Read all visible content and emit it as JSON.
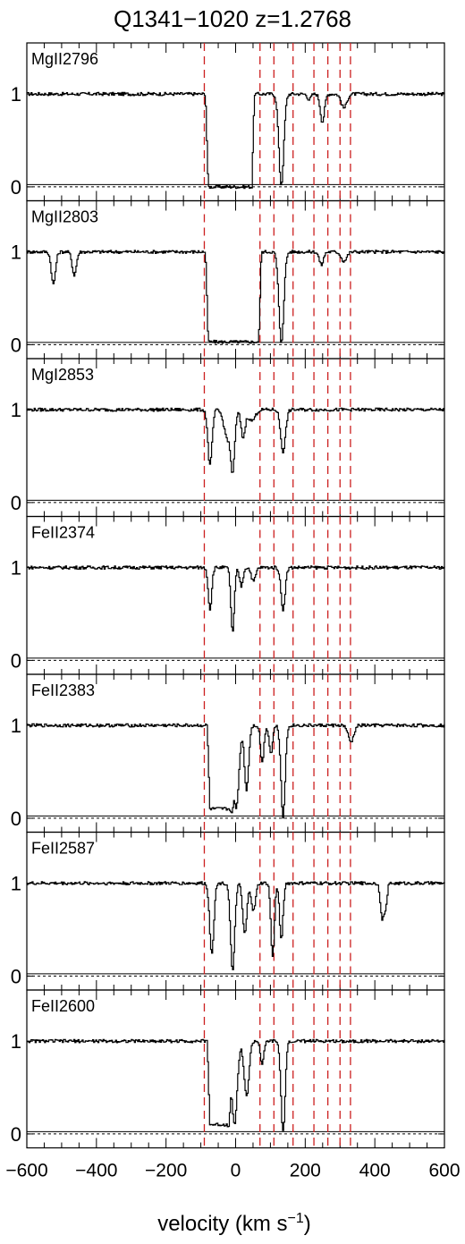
{
  "chart_data": {
    "type": "line",
    "title": "Q1341−1020  z=1.2768",
    "xlabel": "velocity (km s",
    "xlabel_sup": "−1",
    "xlabel_close": ")",
    "xlim": [
      -600,
      600
    ],
    "ylim": [
      -0.15,
      1.55
    ],
    "x_ticks": [
      -600,
      -400,
      -200,
      0,
      200,
      400,
      600
    ],
    "x_tick_labels": [
      "−600",
      "−400",
      "−200",
      "0",
      "200",
      "400",
      "600"
    ],
    "y_ticks": [
      0,
      1
    ],
    "y_tick_labels": [
      "0",
      "1"
    ],
    "component_lines": [
      -90,
      70,
      110,
      165,
      225,
      265,
      300,
      330
    ],
    "colors": {
      "spectrum": "#000000",
      "components": "#cc1f1f",
      "zero_line": "#000000"
    },
    "panels": [
      {
        "label": "MgII2796",
        "features": [
          {
            "kind": "trough",
            "x1": -80,
            "x2": 45,
            "ramp": 8,
            "depth": 1.0
          },
          {
            "kind": "gauss",
            "center": 130,
            "sigma": 7,
            "depth": 0.98
          },
          {
            "kind": "gauss",
            "center": 248,
            "sigma": 6,
            "depth": 0.3
          },
          {
            "kind": "gauss",
            "center": 310,
            "sigma": 8,
            "depth": 0.15
          },
          {
            "kind": "gauss",
            "center": 210,
            "sigma": 5,
            "depth": 0.06
          }
        ]
      },
      {
        "label": "MgII2803",
        "features": [
          {
            "kind": "gauss",
            "center": -525,
            "sigma": 6,
            "depth": 0.35
          },
          {
            "kind": "gauss",
            "center": -465,
            "sigma": 6,
            "depth": 0.25
          },
          {
            "kind": "trough",
            "x1": -80,
            "x2": 65,
            "ramp": 8,
            "depth": 0.97
          },
          {
            "kind": "gauss",
            "center": 130,
            "sigma": 7,
            "depth": 0.98
          },
          {
            "kind": "gauss",
            "center": 245,
            "sigma": 6,
            "depth": 0.14
          },
          {
            "kind": "gauss",
            "center": 310,
            "sigma": 8,
            "depth": 0.1
          }
        ]
      },
      {
        "label": "MgI2853",
        "features": [
          {
            "kind": "gauss",
            "center": -75,
            "sigma": 6,
            "depth": 0.6
          },
          {
            "kind": "gauss",
            "center": -25,
            "sigma": 10,
            "depth": 0.3
          },
          {
            "kind": "gauss",
            "center": -10,
            "sigma": 6,
            "depth": 0.65
          },
          {
            "kind": "gauss",
            "center": 20,
            "sigma": 6,
            "depth": 0.3
          },
          {
            "kind": "gauss",
            "center": 45,
            "sigma": 10,
            "depth": 0.12
          },
          {
            "kind": "gauss",
            "center": 135,
            "sigma": 7,
            "depth": 0.45
          }
        ]
      },
      {
        "label": "FeII2374",
        "features": [
          {
            "kind": "gauss",
            "center": -75,
            "sigma": 5,
            "depth": 0.45
          },
          {
            "kind": "gauss",
            "center": -10,
            "sigma": 5,
            "depth": 0.7
          },
          {
            "kind": "gauss",
            "center": 15,
            "sigma": 5,
            "depth": 0.2
          },
          {
            "kind": "gauss",
            "center": 50,
            "sigma": 6,
            "depth": 0.15
          },
          {
            "kind": "gauss",
            "center": 135,
            "sigma": 6,
            "depth": 0.45
          }
        ]
      },
      {
        "label": "FeII2383",
        "features": [
          {
            "kind": "trough",
            "x1": -75,
            "x2": -10,
            "ramp": 8,
            "depth": 0.9
          },
          {
            "kind": "gauss",
            "center": 0,
            "sigma": 8,
            "depth": 0.9
          },
          {
            "kind": "gauss",
            "center": 30,
            "sigma": 6,
            "depth": 0.7
          },
          {
            "kind": "gauss",
            "center": 75,
            "sigma": 5,
            "depth": 0.4
          },
          {
            "kind": "gauss",
            "center": 100,
            "sigma": 5,
            "depth": 0.3
          },
          {
            "kind": "gauss",
            "center": 135,
            "sigma": 6,
            "depth": 0.98
          },
          {
            "kind": "gauss",
            "center": 330,
            "sigma": 8,
            "depth": 0.18
          }
        ]
      },
      {
        "label": "FeII2587",
        "features": [
          {
            "kind": "gauss",
            "center": -70,
            "sigma": 6,
            "depth": 0.75
          },
          {
            "kind": "gauss",
            "center": -10,
            "sigma": 6,
            "depth": 0.95
          },
          {
            "kind": "gauss",
            "center": 25,
            "sigma": 6,
            "depth": 0.55
          },
          {
            "kind": "gauss",
            "center": 50,
            "sigma": 6,
            "depth": 0.3
          },
          {
            "kind": "gauss",
            "center": 105,
            "sigma": 5,
            "depth": 0.8
          },
          {
            "kind": "gauss",
            "center": 130,
            "sigma": 5,
            "depth": 0.6
          },
          {
            "kind": "gauss",
            "center": 420,
            "sigma": 5,
            "depth": 0.4
          },
          {
            "kind": "gauss",
            "center": 430,
            "sigma": 4,
            "depth": 0.25
          }
        ]
      },
      {
        "label": "FeII2600",
        "features": [
          {
            "kind": "trough",
            "x1": -75,
            "x2": -20,
            "ramp": 8,
            "depth": 0.9
          },
          {
            "kind": "gauss",
            "center": -5,
            "sigma": 8,
            "depth": 0.9
          },
          {
            "kind": "gauss",
            "center": 30,
            "sigma": 7,
            "depth": 0.6
          },
          {
            "kind": "gauss",
            "center": 75,
            "sigma": 5,
            "depth": 0.25
          },
          {
            "kind": "gauss",
            "center": 135,
            "sigma": 6,
            "depth": 0.98
          }
        ]
      }
    ]
  }
}
